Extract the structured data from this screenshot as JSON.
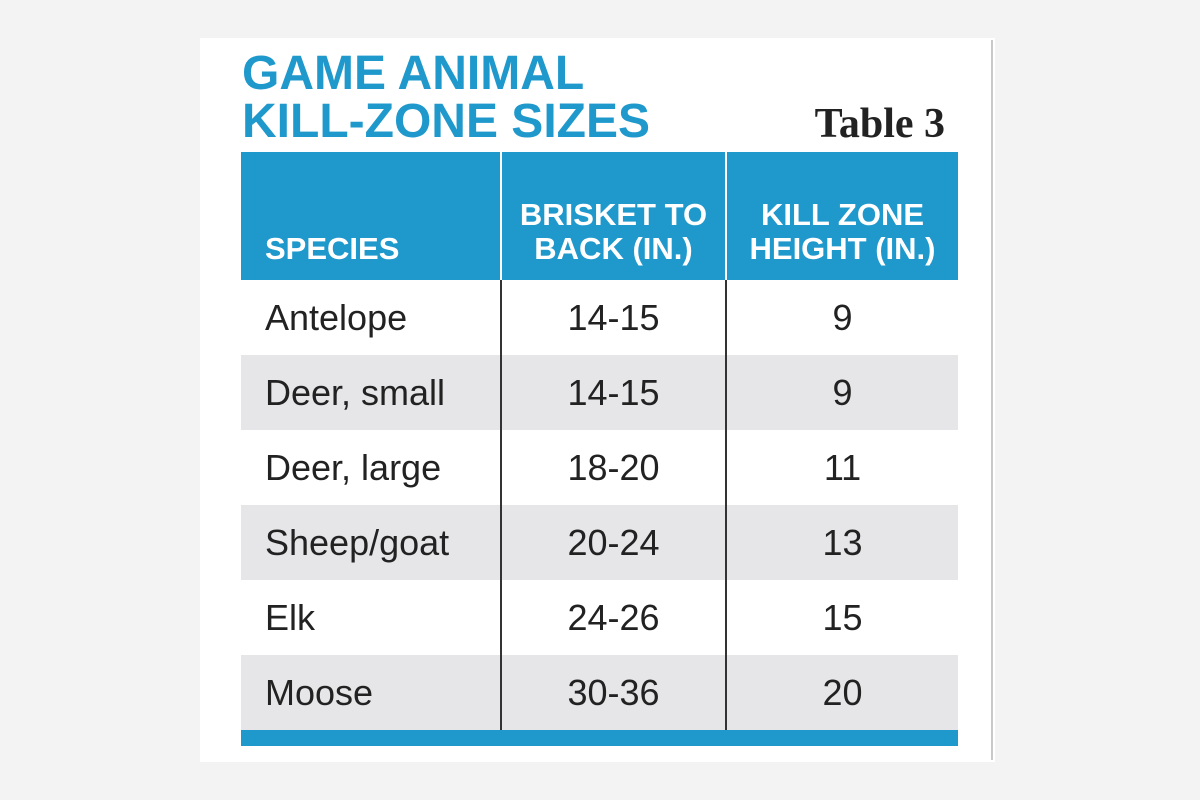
{
  "title_lines": [
    "GAME ANIMAL",
    "KILL-ZONE SIZES"
  ],
  "table_label": "Table 3",
  "columns": [
    "SPECIES",
    "BRISKET TO BACK (IN.)",
    "KILL ZONE HEIGHT (IN.)"
  ],
  "column_lines": [
    [
      "SPECIES"
    ],
    [
      "BRISKET TO",
      "BACK (IN.)"
    ],
    [
      "KILL ZONE",
      "HEIGHT (IN.)"
    ]
  ],
  "rows": [
    {
      "species": "Antelope",
      "brisket_to_back": "14-15",
      "kill_zone_height": "9"
    },
    {
      "species": "Deer, small",
      "brisket_to_back": "14-15",
      "kill_zone_height": "9"
    },
    {
      "species": "Deer, large",
      "brisket_to_back": "18-20",
      "kill_zone_height": "11"
    },
    {
      "species": "Sheep/goat",
      "brisket_to_back": "20-24",
      "kill_zone_height": "13"
    },
    {
      "species": "Elk",
      "brisket_to_back": "24-26",
      "kill_zone_height": "15"
    },
    {
      "species": "Moose",
      "brisket_to_back": "30-36",
      "kill_zone_height": "20"
    }
  ],
  "colors": {
    "accent": "#1f98cc",
    "row_shade": "#e6e6e8",
    "text": "#222222",
    "header_text": "#ffffff"
  }
}
